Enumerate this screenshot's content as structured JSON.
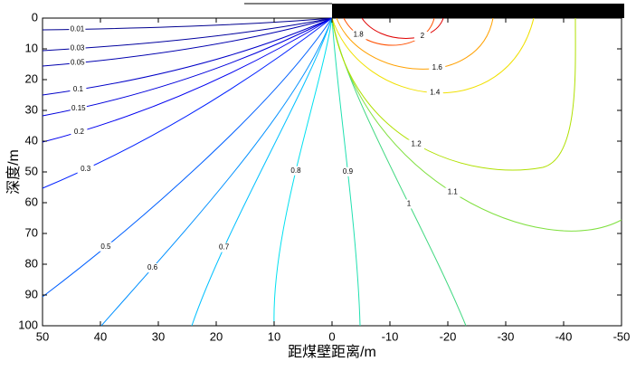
{
  "chart_data": {
    "type": "contour",
    "xlabel": "距煤壁距离/m",
    "ylabel": "深度/m",
    "xlim": [
      50,
      -50
    ],
    "xticks": [
      50,
      40,
      30,
      20,
      10,
      0,
      -10,
      -20,
      -30,
      -40,
      -50
    ],
    "ylim": [
      0,
      100
    ],
    "yticks": [
      0,
      10,
      20,
      30,
      40,
      50,
      60,
      70,
      80,
      90,
      100
    ],
    "contours": [
      {
        "level": 0.01,
        "color": "#00008f"
      },
      {
        "level": 0.03,
        "color": "#00009f"
      },
      {
        "level": 0.05,
        "color": "#0000af"
      },
      {
        "level": 0.1,
        "color": "#0000c8"
      },
      {
        "level": 0.15,
        "color": "#0000dc"
      },
      {
        "level": 0.2,
        "color": "#0000f0"
      },
      {
        "level": 0.3,
        "color": "#0020ff"
      },
      {
        "level": 0.5,
        "color": "#0060ff"
      },
      {
        "level": 0.6,
        "color": "#0090ff"
      },
      {
        "level": 0.7,
        "color": "#00c0ff"
      },
      {
        "level": 0.8,
        "color": "#00e0f0"
      },
      {
        "level": 0.9,
        "color": "#20e0b0"
      },
      {
        "level": 1,
        "color": "#40d880"
      },
      {
        "level": 1.1,
        "color": "#80e040"
      },
      {
        "level": 1.2,
        "color": "#b0e000"
      },
      {
        "level": 1.4,
        "color": "#f0e000"
      },
      {
        "level": 1.6,
        "color": "#ffa000"
      },
      {
        "level": 1.8,
        "color": "#ff5000"
      },
      {
        "level": 2,
        "color": "#e00000"
      }
    ]
  }
}
